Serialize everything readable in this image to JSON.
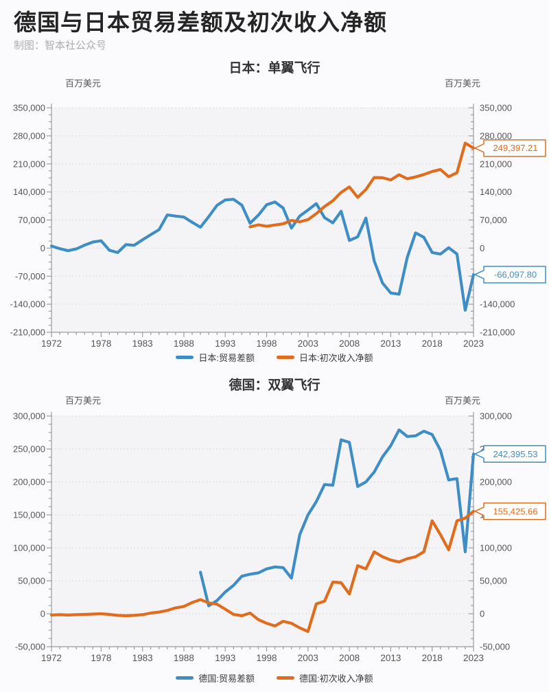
{
  "page": {
    "title": "德国与日本贸易差额及初次收入净额",
    "credit": "制图：智本社公众号"
  },
  "chart_data": [
    {
      "type": "line",
      "title": "日本：单翼飞行",
      "unit_left": "百万美元",
      "unit_right": "百万美元",
      "xlim": [
        1972,
        2023
      ],
      "ylim": [
        -210000,
        350000
      ],
      "x_ticks": [
        1972,
        1978,
        1983,
        1988,
        1993,
        1998,
        2003,
        2008,
        2013,
        2018,
        2023
      ],
      "y_ticks": [
        350000,
        280000,
        210000,
        140000,
        70000,
        0,
        -70000,
        -140000,
        -210000
      ],
      "grid": "horizontal-dashed",
      "legend_position": "bottom",
      "colors": {
        "axis": "#9A9AA0",
        "grid": "#D9D9DE",
        "plot_bg": "#F4F4F7",
        "tick_label": "#555555"
      },
      "series": [
        {
          "name": "日本:贸易差额",
          "color": "#3E8EC5",
          "start_year": 1972,
          "end_label": "-66,097.80",
          "values": [
            5100,
            -1400,
            -6600,
            -2100,
            7300,
            15000,
            18200,
            -5600,
            -11000,
            8700,
            6900,
            20500,
            33600,
            46000,
            82700,
            79700,
            77600,
            64300,
            52100,
            78200,
            106600,
            120200,
            121800,
            107100,
            61700,
            82200,
            108000,
            115000,
            100000,
            50000,
            80000,
            95000,
            111000,
            76000,
            63000,
            92000,
            19000,
            28000,
            75000,
            -32000,
            -87000,
            -112000,
            -115000,
            -23000,
            38000,
            27000,
            -11000,
            -15000,
            1000,
            -15000,
            -155000,
            -66097.8
          ]
        },
        {
          "name": "日本:初次收入净额",
          "color": "#E06C1E",
          "start_year": 1996,
          "end_label": "249,397.21",
          "values": [
            53000,
            58000,
            54500,
            57500,
            60500,
            69000,
            65500,
            71000,
            86000,
            103500,
            118000,
            139000,
            152500,
            126500,
            146000,
            176000,
            175500,
            170000,
            183000,
            173000,
            177500,
            183500,
            191000,
            196000,
            178000,
            188000,
            262000,
            249397.21
          ]
        }
      ]
    },
    {
      "type": "line",
      "title": "德国：双翼飞行",
      "unit_left": "百万美元",
      "unit_right": "百万美元",
      "xlim": [
        1972,
        2023
      ],
      "ylim": [
        -50000,
        300000
      ],
      "x_ticks": [
        1972,
        1978,
        1983,
        1988,
        1993,
        1998,
        2003,
        2008,
        2013,
        2018,
        2023
      ],
      "y_ticks": [
        300000,
        250000,
        200000,
        150000,
        100000,
        50000,
        0,
        -50000
      ],
      "grid": "horizontal-dashed",
      "legend_position": "bottom",
      "colors": {
        "axis": "#9A9AA0",
        "grid": "#D9D9DE",
        "plot_bg": "#F4F4F7",
        "tick_label": "#555555"
      },
      "series": [
        {
          "name": "德国:贸易差额",
          "color": "#3E8EC5",
          "start_year": 1990,
          "end_label": "242,395.53",
          "values": [
            63000,
            12000,
            20000,
            33000,
            43000,
            57000,
            60000,
            62000,
            68000,
            71000,
            70000,
            54000,
            120000,
            150000,
            170000,
            196000,
            195000,
            264000,
            260000,
            193000,
            200000,
            215000,
            238000,
            255000,
            279000,
            269000,
            270000,
            277000,
            272000,
            248000,
            203000,
            205000,
            94000,
            242395.53
          ]
        },
        {
          "name": "德国:初次收入净额",
          "color": "#E06C1E",
          "start_year": 1972,
          "end_label": "155,425.66",
          "values": [
            -2000,
            -1500,
            -2000,
            -1500,
            -1000,
            -500,
            0,
            -1000,
            -2500,
            -3000,
            -2500,
            -1500,
            1000,
            2500,
            5000,
            9000,
            11000,
            17000,
            21500,
            16500,
            14500,
            7000,
            -1000,
            -3000,
            1000,
            -9000,
            -14500,
            -18500,
            -11500,
            -14500,
            -21500,
            -27000,
            15000,
            19000,
            48000,
            47000,
            30000,
            73000,
            68000,
            94000,
            86500,
            81500,
            78500,
            83500,
            86500,
            94000,
            141000,
            120000,
            97000,
            141000,
            145000,
            155425.66
          ]
        }
      ]
    }
  ]
}
